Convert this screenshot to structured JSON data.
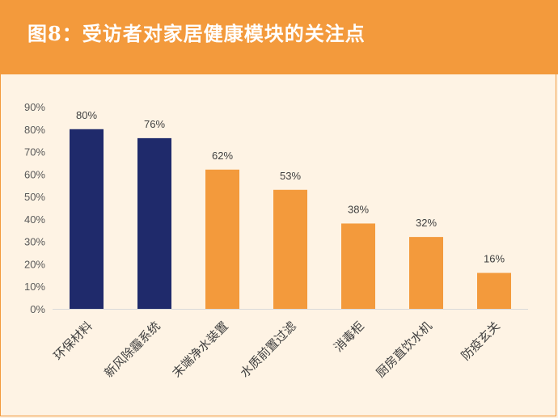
{
  "header": {
    "title": "图8：受访者对家居健康模块的关注点"
  },
  "colors": {
    "header_bg": "#f39a3c",
    "highlight": "#1f2a6b",
    "normal": "#f39a3c",
    "background": "#fef3e4"
  },
  "chart_data": {
    "type": "bar",
    "title": "",
    "xlabel": "",
    "ylabel": "",
    "categories": [
      "环保材料",
      "新风除霾系统",
      "末端净水装置",
      "水质前置过滤",
      "消毒柜",
      "厨房直饮水机",
      "防疫玄关"
    ],
    "values": [
      80,
      76,
      62,
      53,
      38,
      32,
      16
    ],
    "value_labels": [
      "80%",
      "76%",
      "62%",
      "53%",
      "38%",
      "32%",
      "16%"
    ],
    "bar_colors": [
      "#1f2a6b",
      "#1f2a6b",
      "#f39a3c",
      "#f39a3c",
      "#f39a3c",
      "#f39a3c",
      "#f39a3c"
    ],
    "ylim": [
      0,
      90
    ],
    "yticks": [
      0,
      10,
      20,
      30,
      40,
      50,
      60,
      70,
      80,
      90
    ],
    "ytick_labels": [
      "0%",
      "10%",
      "20%",
      "30%",
      "40%",
      "50%",
      "60%",
      "70%",
      "80%",
      "90%"
    ],
    "grid": false,
    "legend": "none"
  }
}
